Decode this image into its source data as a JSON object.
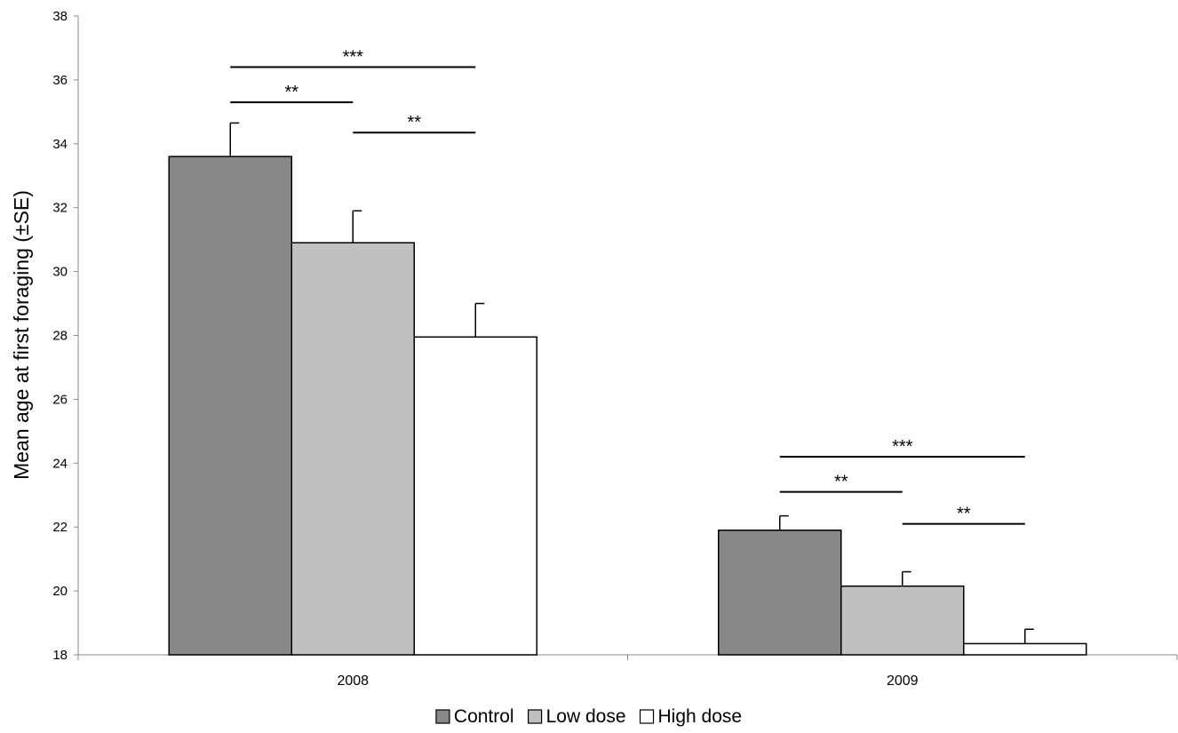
{
  "chart_data": {
    "type": "bar",
    "title": "",
    "ylabel": "Mean age at first foraging (±SE)",
    "xlabel": "",
    "ylim": [
      18,
      38
    ],
    "yticks": [
      18,
      20,
      22,
      24,
      26,
      28,
      30,
      32,
      34,
      36,
      38
    ],
    "categories": [
      "2008",
      "2009"
    ],
    "series": [
      {
        "name": "Control",
        "color": "#888888",
        "values": [
          33.6,
          21.9
        ],
        "errors": [
          1.05,
          0.45
        ]
      },
      {
        "name": "Low dose",
        "color": "#c0c0c0",
        "values": [
          30.9,
          20.15
        ],
        "errors": [
          1.0,
          0.45
        ]
      },
      {
        "name": "High dose",
        "color": "#ffffff",
        "values": [
          27.95,
          18.35
        ],
        "errors": [
          1.05,
          0.45
        ]
      }
    ],
    "legend_position": "bottom",
    "grid": false,
    "significance": [
      {
        "category": 0,
        "from": 0,
        "to": 2,
        "y": 36.4,
        "label": "***"
      },
      {
        "category": 0,
        "from": 0,
        "to": 1,
        "y": 35.3,
        "label": "**"
      },
      {
        "category": 0,
        "from": 1,
        "to": 2,
        "y": 34.35,
        "label": "**"
      },
      {
        "category": 1,
        "from": 0,
        "to": 2,
        "y": 24.2,
        "label": "***"
      },
      {
        "category": 1,
        "from": 0,
        "to": 1,
        "y": 23.1,
        "label": "**"
      },
      {
        "category": 1,
        "from": 1,
        "to": 2,
        "y": 22.1,
        "label": "**"
      }
    ]
  }
}
